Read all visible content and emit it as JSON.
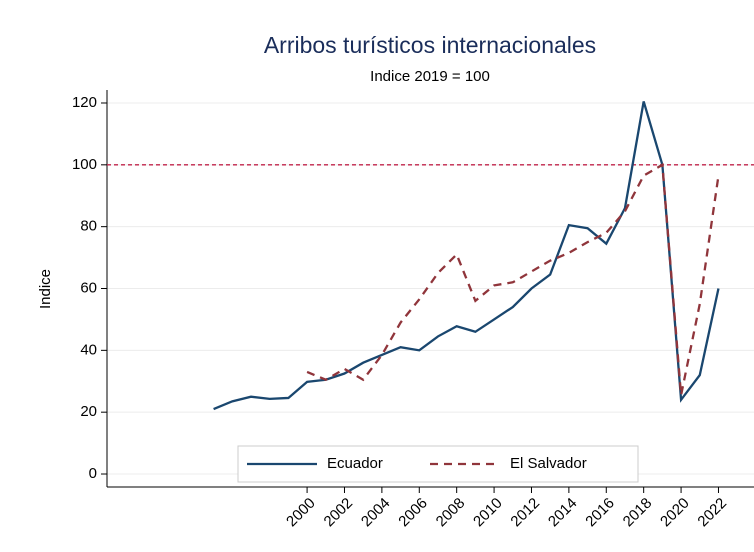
{
  "chart_data": {
    "type": "line",
    "title": "Arribos turísticos internacionales",
    "subtitle": "Indice 2019 = 100",
    "y_label": "Indice",
    "xlim": [
      1989.3,
      2023.9
    ],
    "xticks": [
      2000,
      2002,
      2004,
      2006,
      2008,
      2010,
      2012,
      2014,
      2016,
      2018,
      2020,
      2022
    ],
    "ylim": [
      -4.2,
      124.2
    ],
    "yticks": [
      0,
      20,
      40,
      60,
      80,
      100,
      120
    ],
    "grid": true,
    "reference_line": {
      "value": 100,
      "color": "#c0234a"
    },
    "legend": "bottom",
    "series": [
      {
        "name": "Ecuador",
        "color": "#1a476f",
        "dash": false,
        "x": [
          1995,
          1996,
          1997,
          1998,
          1999,
          2000,
          2001,
          2002,
          2003,
          2004,
          2005,
          2006,
          2007,
          2008,
          2009,
          2010,
          2011,
          2012,
          2013,
          2014,
          2015,
          2016,
          2017,
          2018,
          2019,
          2020,
          2021,
          2022
        ],
        "values": [
          21,
          23.5,
          25,
          24.3,
          24.6,
          29.8,
          30.5,
          32.5,
          36,
          38.5,
          41,
          40,
          44.5,
          47.8,
          46,
          50,
          54,
          60,
          64.5,
          80.5,
          79.5,
          74.5,
          86,
          120.5,
          100,
          24,
          32,
          60
        ]
      },
      {
        "name": "El Salvador",
        "color": "#90353b",
        "dash": true,
        "x": [
          2000,
          2001,
          2002,
          2003,
          2004,
          2005,
          2006,
          2007,
          2008,
          2009,
          2010,
          2011,
          2012,
          2013,
          2014,
          2015,
          2016,
          2017,
          2018,
          2019,
          2020,
          2021,
          2022
        ],
        "values": [
          33,
          30.5,
          34,
          30.5,
          38.5,
          49,
          56.5,
          65,
          71,
          56,
          61,
          62,
          65.5,
          69,
          71.5,
          75,
          78,
          85,
          96.5,
          100,
          25.5,
          55,
          96.5
        ]
      }
    ]
  }
}
